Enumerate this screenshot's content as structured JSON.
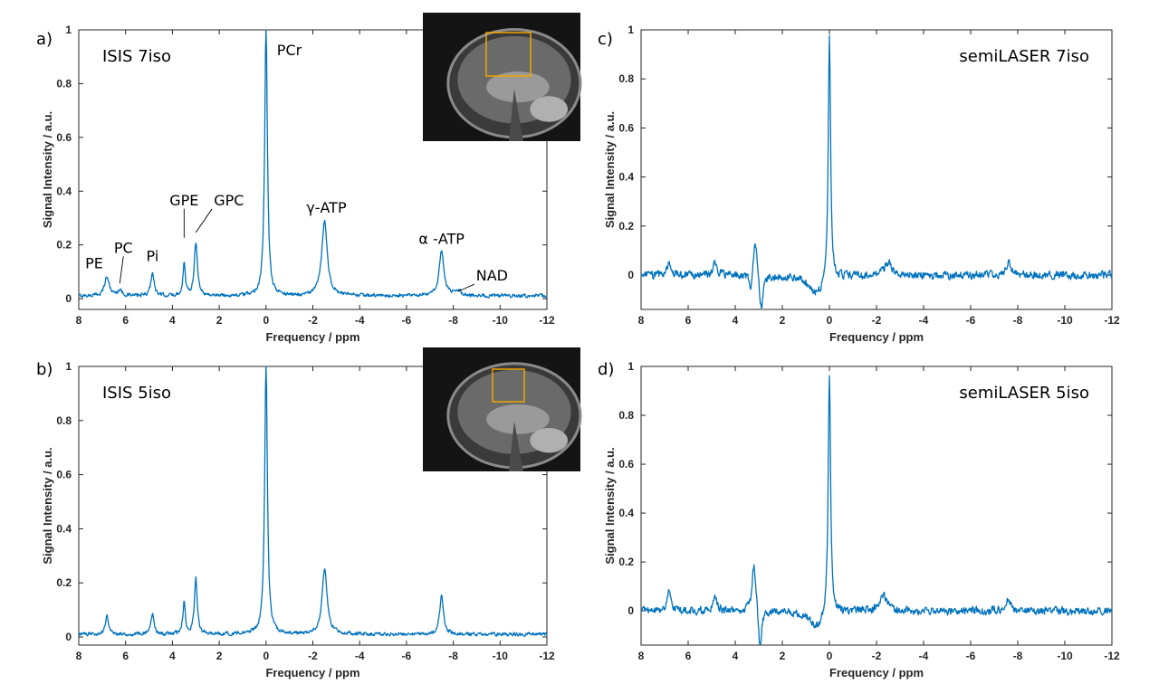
{
  "colors": {
    "trace": "#0072BD",
    "roi_box": "#F0A500",
    "axes": "#262626"
  },
  "chart_data": [
    {
      "type": "line",
      "panel_label": "a)",
      "title": "ISIS 7iso",
      "xlabel": "Frequency / ppm",
      "ylabel": "Signal Intensity / a.u.",
      "xlim": [
        8,
        -12
      ],
      "ylim": [
        -0.04,
        1.0
      ],
      "xticks": [
        "8",
        "6",
        "4",
        "2",
        "0",
        "-2",
        "-4",
        "-6",
        "-8",
        "-10",
        "-12"
      ],
      "yticks": [
        "0",
        "0.2",
        "0.4",
        "0.6",
        "0.8",
        "1"
      ],
      "inset": "sagittal brain MRI with voxel box",
      "peaks": [
        {
          "ppm": 6.8,
          "height": 0.07,
          "width": 0.12
        },
        {
          "ppm": 6.25,
          "height": 0.02,
          "width": 0.12
        },
        {
          "ppm": 4.85,
          "height": 0.09,
          "width": 0.08
        },
        {
          "ppm": 3.5,
          "height": 0.12,
          "width": 0.06
        },
        {
          "ppm": 3.0,
          "height": 0.2,
          "width": 0.08
        },
        {
          "ppm": 0.0,
          "height": 1.0,
          "width": 0.07
        },
        {
          "ppm": -2.5,
          "height": 0.28,
          "width": 0.14
        },
        {
          "ppm": -7.5,
          "height": 0.17,
          "width": 0.12
        },
        {
          "ppm": -8.2,
          "height": 0.02,
          "width": 0.15
        }
      ],
      "annotations": [
        {
          "text": "PCr",
          "ppm": 0.0,
          "y": 1.0
        },
        {
          "text": "γ-ATP",
          "ppm": -2.5,
          "y": 0.28
        },
        {
          "text": "α -ATP",
          "ppm": -7.5,
          "y": 0.17
        },
        {
          "text": "NAD",
          "ppm": -8.2,
          "y": 0.02
        },
        {
          "text": "GPC",
          "ppm": 3.0,
          "y": 0.24
        },
        {
          "text": "GPE",
          "ppm": 3.5,
          "y": 0.22
        },
        {
          "text": "Pi",
          "ppm": 4.85,
          "y": 0.1
        },
        {
          "text": "PC",
          "ppm": 6.25,
          "y": 0.05
        },
        {
          "text": "PE",
          "ppm": 6.8,
          "y": 0.08
        }
      ]
    },
    {
      "type": "line",
      "panel_label": "b)",
      "title": "ISIS 5iso",
      "xlabel": "Frequency / ppm",
      "ylabel": "Signal Intensity / a.u.",
      "xlim": [
        8,
        -12
      ],
      "ylim": [
        -0.03,
        1.0
      ],
      "xticks": [
        "8",
        "6",
        "4",
        "2",
        "0",
        "-2",
        "-4",
        "-6",
        "-8",
        "-10",
        "-12"
      ],
      "yticks": [
        "0",
        "0.2",
        "0.4",
        "0.6",
        "0.8",
        "1"
      ],
      "inset": "sagittal brain MRI with voxel box",
      "peaks": [
        {
          "ppm": 6.8,
          "height": 0.07,
          "width": 0.08
        },
        {
          "ppm": 4.85,
          "height": 0.08,
          "width": 0.07
        },
        {
          "ppm": 3.5,
          "height": 0.12,
          "width": 0.06
        },
        {
          "ppm": 3.0,
          "height": 0.21,
          "width": 0.07
        },
        {
          "ppm": 0.0,
          "height": 1.0,
          "width": 0.07
        },
        {
          "ppm": -2.5,
          "height": 0.24,
          "width": 0.13
        },
        {
          "ppm": -7.5,
          "height": 0.15,
          "width": 0.09
        }
      ],
      "annotations": []
    },
    {
      "type": "line",
      "panel_label": "c)",
      "title": "semiLASER 7iso",
      "xlabel": "Frequency / ppm",
      "ylabel": "Signal Intensity / a.u.",
      "xlim": [
        8,
        -12
      ],
      "ylim": [
        -0.14,
        1.0
      ],
      "xticks": [
        "8",
        "6",
        "4",
        "2",
        "0",
        "-2",
        "-4",
        "-6",
        "-8",
        "-10",
        "-12"
      ],
      "yticks": [
        "0",
        "0.2",
        "0.4",
        "0.6",
        "0.8",
        "1"
      ],
      "peaks": [
        {
          "ppm": 6.8,
          "height": 0.05,
          "width": 0.1
        },
        {
          "ppm": 4.85,
          "height": 0.05,
          "width": 0.1
        },
        {
          "ppm": 3.15,
          "height": 0.16,
          "width": 0.1
        },
        {
          "ppm": 2.9,
          "height": -0.15,
          "width": 0.1
        },
        {
          "ppm": 3.35,
          "height": -0.08,
          "width": 0.07
        },
        {
          "ppm": 0.0,
          "height": 1.0,
          "width": 0.06
        },
        {
          "ppm": 0.5,
          "height": -0.08,
          "width": 0.4
        },
        {
          "ppm": -2.5,
          "height": 0.05,
          "width": 0.2
        },
        {
          "ppm": -7.6,
          "height": 0.05,
          "width": 0.12
        }
      ],
      "annotations": []
    },
    {
      "type": "line",
      "panel_label": "d)",
      "title": "semiLASER 5iso",
      "xlabel": "Frequency / ppm",
      "ylabel": "Signal Intensity / a.u.",
      "xlim": [
        8,
        -12
      ],
      "ylim": [
        -0.14,
        1.0
      ],
      "xticks": [
        "8",
        "6",
        "4",
        "2",
        "0",
        "-2",
        "-4",
        "-6",
        "-8",
        "-10",
        "-12"
      ],
      "yticks": [
        "0",
        "0.2",
        "0.4",
        "0.6",
        "0.8",
        "1"
      ],
      "peaks": [
        {
          "ppm": 6.8,
          "height": 0.08,
          "width": 0.1
        },
        {
          "ppm": 4.85,
          "height": 0.05,
          "width": 0.1
        },
        {
          "ppm": 3.2,
          "height": 0.2,
          "width": 0.1
        },
        {
          "ppm": 2.95,
          "height": -0.17,
          "width": 0.08
        },
        {
          "ppm": 0.0,
          "height": 1.0,
          "width": 0.06
        },
        {
          "ppm": 0.5,
          "height": -0.07,
          "width": 0.4
        },
        {
          "ppm": -2.3,
          "height": 0.06,
          "width": 0.2
        },
        {
          "ppm": -7.6,
          "height": 0.05,
          "width": 0.12
        }
      ],
      "annotations": []
    }
  ]
}
